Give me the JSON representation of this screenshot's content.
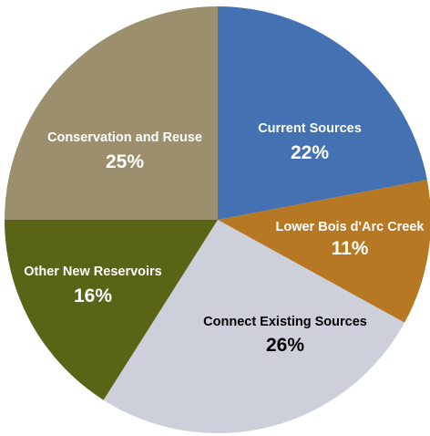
{
  "chart_data": {
    "type": "pie",
    "title": "",
    "slices": [
      {
        "label": "Current Sources",
        "value": 22,
        "value_label": "22%",
        "color": "#4471b2",
        "text_color": "#ffffff"
      },
      {
        "label": "Lower Bois d'Arc Creek",
        "value": 11,
        "value_label": "11%",
        "color": "#b67822",
        "text_color": "#ffffff"
      },
      {
        "label": "Connect Existing Sources",
        "value": 26,
        "value_label": "26%",
        "color": "#cdd0da",
        "text_color": "#000000"
      },
      {
        "label": "Other New Reservoirs",
        "value": 16,
        "value_label": "16%",
        "color": "#596417",
        "text_color": "#ffffff"
      },
      {
        "label": "Conservation and Reuse",
        "value": 25,
        "value_label": "25%",
        "color": "#9b8f6d",
        "text_color": "#ffffff"
      }
    ],
    "start_angle": "12 o'clock",
    "direction": "clockwise",
    "legend": "none"
  }
}
